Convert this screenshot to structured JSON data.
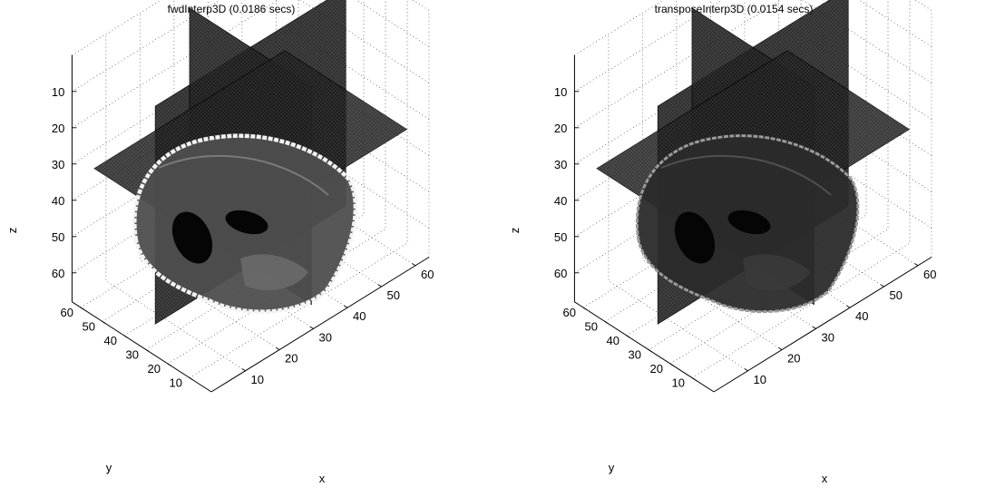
{
  "chart_data": [
    {
      "type": "volume-slice",
      "title": "fwdInterp3D (0.0186 secs)",
      "xlabel": "x",
      "ylabel": "y",
      "zlabel": "z",
      "x_ticks": [
        10,
        20,
        30,
        40,
        50,
        60
      ],
      "y_ticks": [
        10,
        20,
        30,
        40,
        50,
        60
      ],
      "z_ticks": [
        10,
        20,
        30,
        40,
        50,
        60
      ],
      "z_reversed": true,
      "grid": true,
      "slice_planes": [
        "x = 32",
        "y = 32",
        "z = 32"
      ],
      "colormap": "gray",
      "style": "sharp"
    },
    {
      "type": "volume-slice",
      "title": "transposeInterp3D (0.0154 secs)",
      "xlabel": "x",
      "ylabel": "y",
      "zlabel": "z",
      "x_ticks": [
        10,
        20,
        30,
        40,
        50,
        60
      ],
      "y_ticks": [
        10,
        20,
        30,
        40,
        50,
        60
      ],
      "z_ticks": [
        10,
        20,
        30,
        40,
        50,
        60
      ],
      "z_reversed": true,
      "grid": true,
      "slice_planes": [
        "x = 32",
        "y = 32",
        "z = 32"
      ],
      "colormap": "gray",
      "style": "dim"
    }
  ]
}
